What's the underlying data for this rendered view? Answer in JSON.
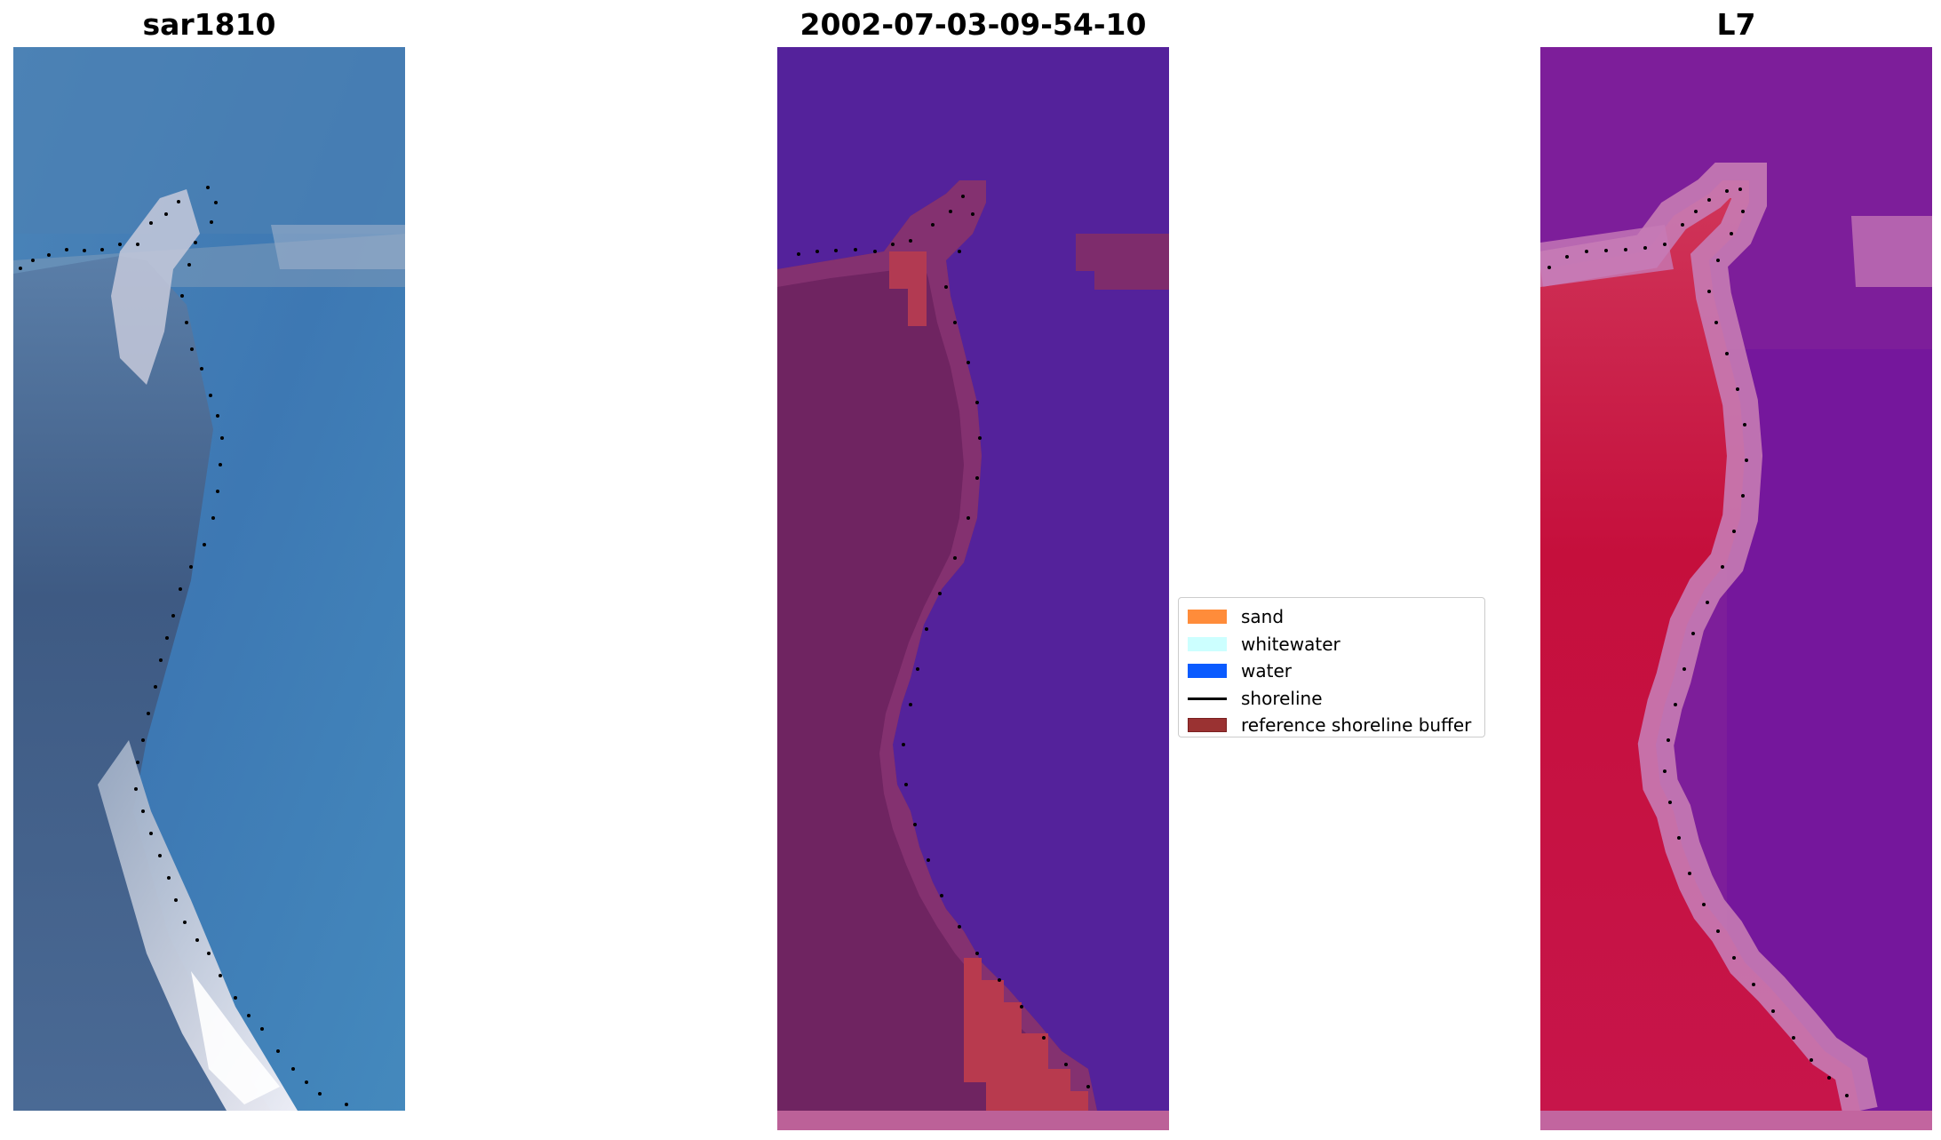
{
  "panels": {
    "left": {
      "title": "sar1810"
    },
    "middle": {
      "title": "2002-07-03-09-54-10"
    },
    "right": {
      "title": "L7"
    }
  },
  "legend": {
    "items": [
      {
        "label": "sand",
        "color": "#FF8C3A",
        "kind": "patch"
      },
      {
        "label": "whitewater",
        "color": "#CCFFFF",
        "kind": "patch"
      },
      {
        "label": "water",
        "color": "#0A5BFF",
        "kind": "patch"
      },
      {
        "label": "shoreline",
        "color": "#000000",
        "kind": "line"
      },
      {
        "label": "reference shoreline buffer",
        "color": "#9A3232",
        "kind": "patch"
      }
    ]
  },
  "colors": {
    "rgb_water": "#3E7DB5",
    "rgb_land": "#3F5E86",
    "rgb_surf": "#F2F0F5",
    "class_water": "#54229B",
    "class_land": "#6E2060",
    "class_buffer": "#B23A52",
    "class_edge": "#B5609A",
    "ir_water": "#7A1E9B",
    "ir_land": "#C4123E",
    "ir_edge": "#C97BB7"
  }
}
